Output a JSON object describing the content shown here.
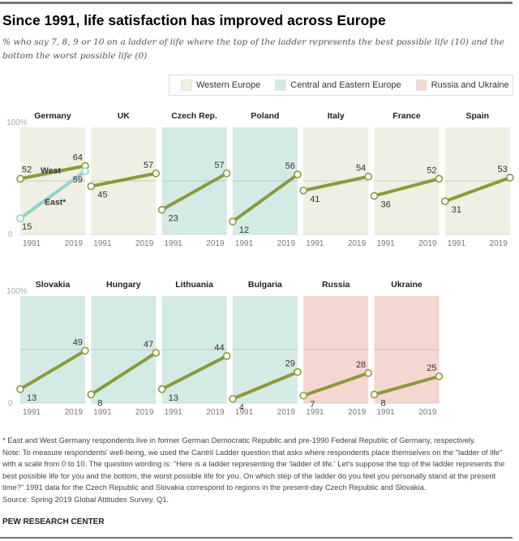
{
  "title": "Since 1991, life satisfaction has improved across Europe",
  "subtitle": "% who say 7, 8, 9 or 10 on a ladder of life where the top of the ladder represents the best possible life (10) and the bottom the worst possible life (0)",
  "legend": [
    {
      "label": "Western Europe",
      "color": "#efefe3"
    },
    {
      "label": "Central and Eastern Europe",
      "color": "#d4eae5"
    },
    {
      "label": "Russia and Ukraine",
      "color": "#f6d6d1"
    }
  ],
  "colors": {
    "line": "#8a9a3c",
    "east": "#8fd4cb"
  },
  "chart_data": {
    "type": "line",
    "x": [
      "1991",
      "2019"
    ],
    "ylim": [
      0,
      100
    ],
    "ytick_labels": [
      "100%",
      "0"
    ],
    "panels": [
      {
        "country": "Germany",
        "region": 0,
        "series": [
          {
            "name": "West",
            "values": [
              52,
              64
            ]
          },
          {
            "name": "East*",
            "values": [
              15,
              59
            ]
          }
        ]
      },
      {
        "country": "UK",
        "region": 0,
        "series": [
          {
            "name": "",
            "values": [
              45,
              57
            ]
          }
        ]
      },
      {
        "country": "Czech Rep.",
        "region": 1,
        "series": [
          {
            "name": "",
            "values": [
              23,
              57
            ]
          }
        ]
      },
      {
        "country": "Poland",
        "region": 1,
        "series": [
          {
            "name": "",
            "values": [
              12,
              56
            ]
          }
        ]
      },
      {
        "country": "Italy",
        "region": 0,
        "series": [
          {
            "name": "",
            "values": [
              41,
              54
            ]
          }
        ]
      },
      {
        "country": "France",
        "region": 0,
        "series": [
          {
            "name": "",
            "values": [
              36,
              52
            ]
          }
        ]
      },
      {
        "country": "Spain",
        "region": 0,
        "series": [
          {
            "name": "",
            "values": [
              31,
              53
            ]
          }
        ]
      },
      {
        "country": "Slovakia",
        "region": 1,
        "series": [
          {
            "name": "",
            "values": [
              13,
              49
            ]
          }
        ]
      },
      {
        "country": "Hungary",
        "region": 1,
        "series": [
          {
            "name": "",
            "values": [
              8,
              47
            ]
          }
        ]
      },
      {
        "country": "Lithuania",
        "region": 1,
        "series": [
          {
            "name": "",
            "values": [
              13,
              44
            ]
          }
        ]
      },
      {
        "country": "Bulgaria",
        "region": 1,
        "series": [
          {
            "name": "",
            "values": [
              4,
              29
            ]
          }
        ]
      },
      {
        "country": "Russia",
        "region": 2,
        "series": [
          {
            "name": "",
            "values": [
              7,
              28
            ]
          }
        ]
      },
      {
        "country": "Ukraine",
        "region": 2,
        "series": [
          {
            "name": "",
            "values": [
              8,
              25
            ]
          }
        ]
      }
    ]
  },
  "notes": [
    "* East and West Germany respondents live in former German Democratic Republic and pre-1990 Federal Republic of Germany, respectively.",
    "Note: To measure respondents' well-being, we used the Cantril Ladder question that asks where respondents place themselves on the \"ladder of life\" with a scale from 0 to 10. The question wording is: \"Here is a ladder representing the 'ladder of life.' Let's suppose the top of the ladder represents the best possible life for you and the bottom, the worst possible life for you. On which step of the ladder do you feel you personally stand at the present time?\" 1991 data for the Czech Republic and Slovakia correspond to regions in the present-day Czech Republic and Slovakia.",
    "Source: Spring 2019 Global Attitudes Survey. Q1."
  ],
  "brand": "PEW RESEARCH CENTER"
}
